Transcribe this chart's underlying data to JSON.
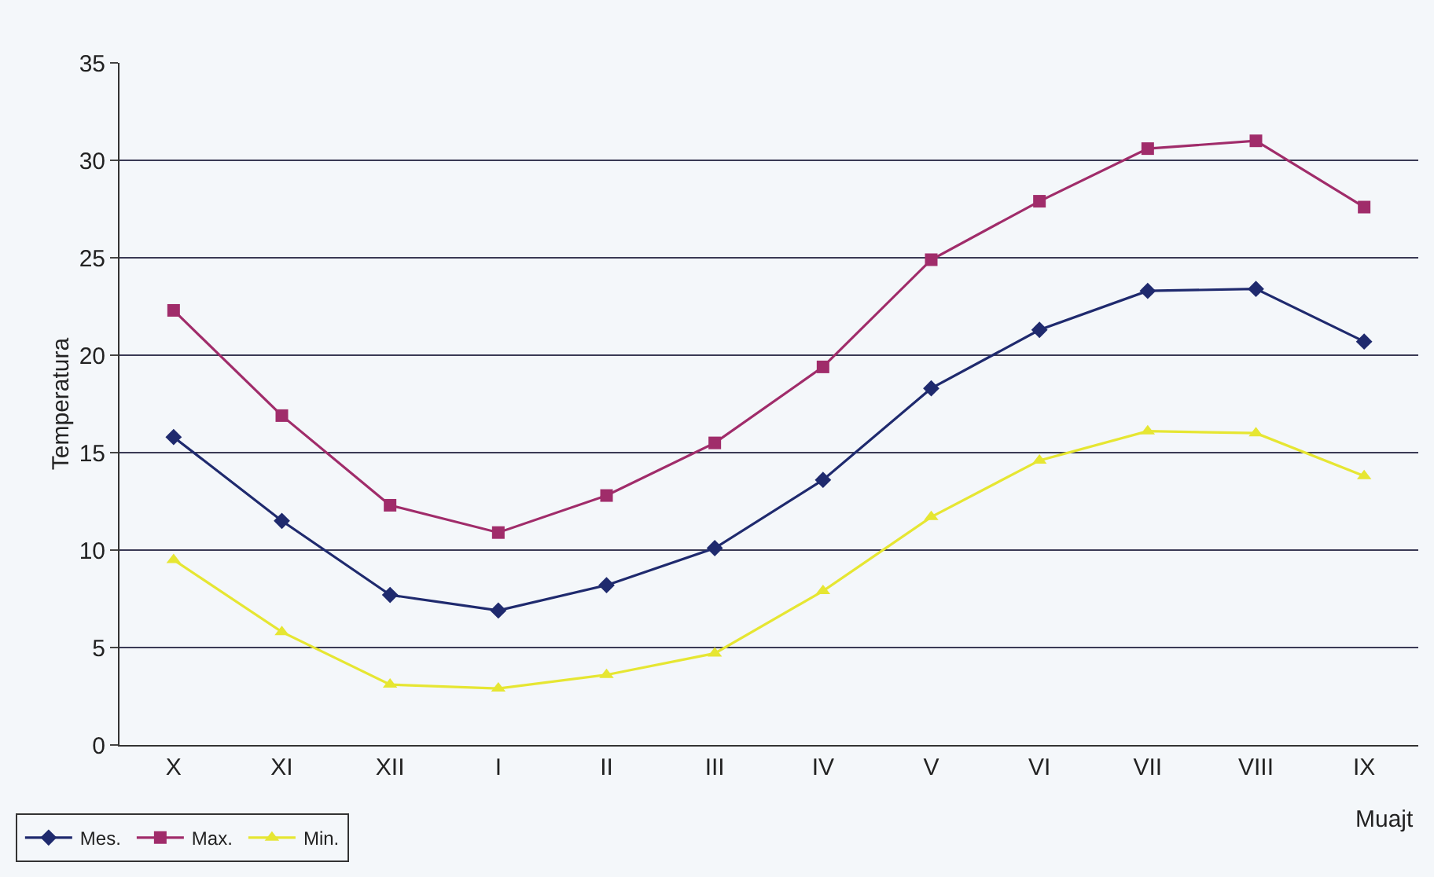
{
  "chart_data": {
    "type": "line",
    "ylabel": "Temperatura",
    "xlabel": "Muajt",
    "categories": [
      "X",
      "XI",
      "XII",
      "I",
      "II",
      "III",
      "IV",
      "V",
      "VI",
      "VII",
      "VIII",
      "IX"
    ],
    "series": [
      {
        "name": "Mes.",
        "color": "#1f2a6e",
        "marker": "diamond",
        "values": [
          15.8,
          11.5,
          7.7,
          6.9,
          8.2,
          10.1,
          13.6,
          18.3,
          21.3,
          23.3,
          23.4,
          20.7
        ]
      },
      {
        "name": "Max.",
        "color": "#a02c6a",
        "marker": "square",
        "values": [
          22.3,
          16.9,
          12.3,
          10.9,
          12.8,
          15.5,
          19.4,
          24.9,
          27.9,
          30.6,
          31.0,
          27.6
        ]
      },
      {
        "name": "Min.",
        "color": "#e6e632",
        "marker": "triangle",
        "values": [
          9.5,
          5.8,
          3.1,
          2.9,
          3.6,
          4.7,
          7.9,
          11.7,
          14.6,
          16.1,
          16.0,
          13.8
        ]
      }
    ],
    "ylim": [
      0,
      35
    ],
    "yticks": [
      0,
      5,
      10,
      15,
      20,
      25,
      30,
      35
    ],
    "grid": "y",
    "legend": "bottom left",
    "line_style": "solid"
  }
}
